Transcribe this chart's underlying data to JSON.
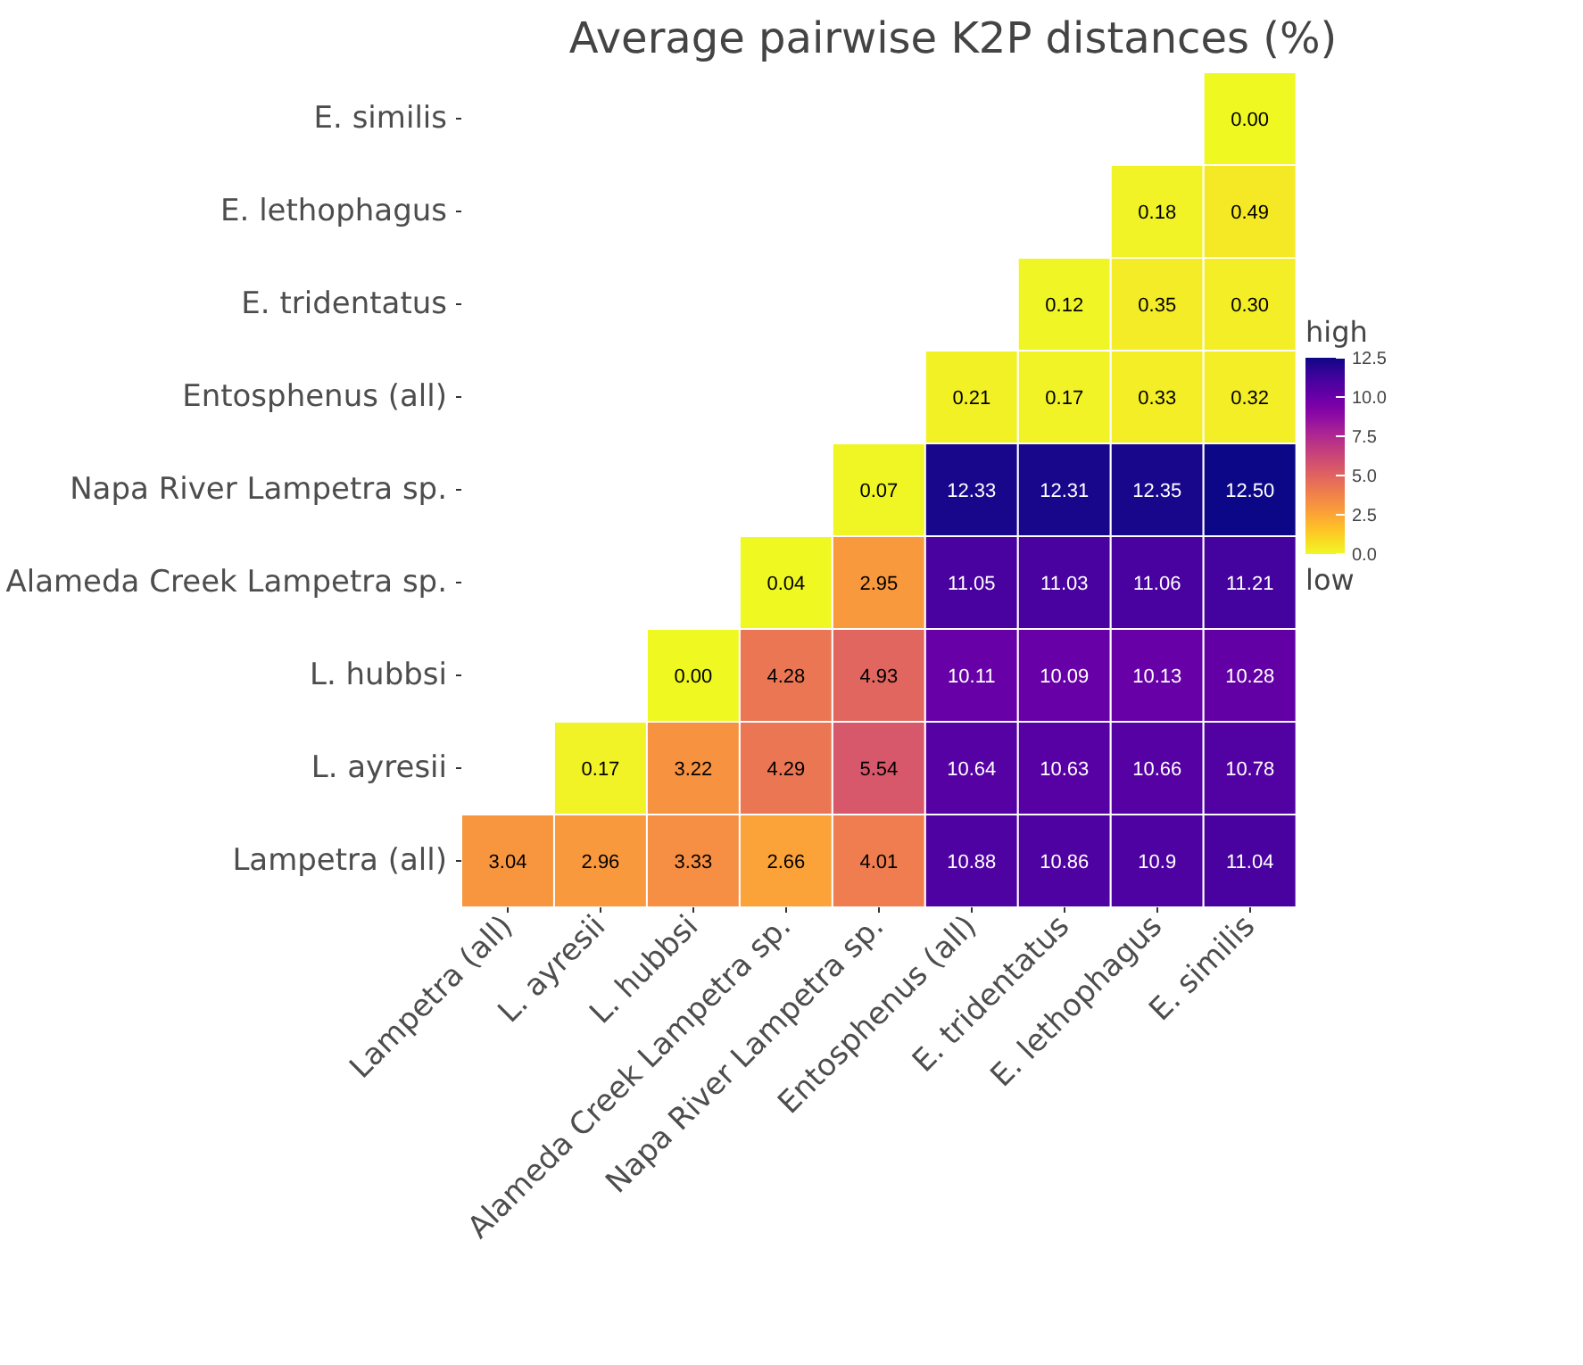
{
  "chart_data": {
    "type": "heatmap",
    "title": "Average pairwise K2P distances (%)",
    "categories": [
      "Lampetra (all)",
      "L. ayresii",
      "L. hubbsi",
      "Alameda Creek Lampetra sp.",
      "Napa River Lampetra sp.",
      "Entosphenus (all)",
      "E. tridentatus",
      "E. lethophagus",
      "E. similis"
    ],
    "y_categories": [
      "E. similis",
      "E. lethophagus",
      "E. tridentatus",
      "Entosphenus (all)",
      "Napa River Lampetra sp.",
      "Alameda Creek Lampetra sp.",
      "L. hubbsi",
      "L. ayresii",
      "Lampetra (all)"
    ],
    "cells": [
      [
        null,
        null,
        null,
        null,
        null,
        null,
        null,
        null,
        0.0
      ],
      [
        null,
        null,
        null,
        null,
        null,
        null,
        null,
        0.18,
        0.49
      ],
      [
        null,
        null,
        null,
        null,
        null,
        null,
        0.12,
        0.35,
        0.3
      ],
      [
        null,
        null,
        null,
        null,
        null,
        0.21,
        0.17,
        0.33,
        0.32
      ],
      [
        null,
        null,
        null,
        null,
        0.07,
        12.33,
        12.31,
        12.35,
        12.5
      ],
      [
        null,
        null,
        null,
        0.04,
        2.95,
        11.05,
        11.03,
        11.06,
        11.21
      ],
      [
        null,
        null,
        0.0,
        4.28,
        4.93,
        10.11,
        10.09,
        10.13,
        10.28
      ],
      [
        null,
        0.17,
        3.22,
        4.29,
        5.54,
        10.64,
        10.63,
        10.66,
        10.78
      ],
      [
        3.04,
        2.96,
        3.33,
        2.66,
        4.01,
        10.88,
        10.86,
        10.9,
        11.04
      ]
    ],
    "cell_labels": [
      [
        null,
        null,
        null,
        null,
        null,
        null,
        null,
        null,
        "0.00"
      ],
      [
        null,
        null,
        null,
        null,
        null,
        null,
        null,
        "0.18",
        "0.49"
      ],
      [
        null,
        null,
        null,
        null,
        null,
        null,
        "0.12",
        "0.35",
        "0.30"
      ],
      [
        null,
        null,
        null,
        null,
        null,
        "0.21",
        "0.17",
        "0.33",
        "0.32"
      ],
      [
        null,
        null,
        null,
        null,
        "0.07",
        "12.33",
        "12.31",
        "12.35",
        "12.50"
      ],
      [
        null,
        null,
        null,
        "0.04",
        "2.95",
        "11.05",
        "11.03",
        "11.06",
        "11.21"
      ],
      [
        null,
        null,
        "0.00",
        "4.28",
        "4.93",
        "10.11",
        "10.09",
        "10.13",
        "10.28"
      ],
      [
        null,
        "0.17",
        "3.22",
        "4.29",
        "5.54",
        "10.64",
        "10.63",
        "10.66",
        "10.78"
      ],
      [
        "3.04",
        "2.96",
        "3.33",
        "2.66",
        "4.01",
        "10.88",
        "10.86",
        "10.9",
        "11.04"
      ]
    ],
    "clim": [
      0,
      12.5
    ],
    "cticks": [
      {
        "value": 0,
        "label": "0.0"
      },
      {
        "value": 2.5,
        "label": "2.5"
      },
      {
        "value": 5,
        "label": "5.0"
      },
      {
        "value": 7.5,
        "label": "7.5"
      },
      {
        "value": 10,
        "label": "10.0"
      },
      {
        "value": 12.5,
        "label": "12.5"
      }
    ],
    "clabel": "high",
    "annotations": [
      "low"
    ]
  }
}
